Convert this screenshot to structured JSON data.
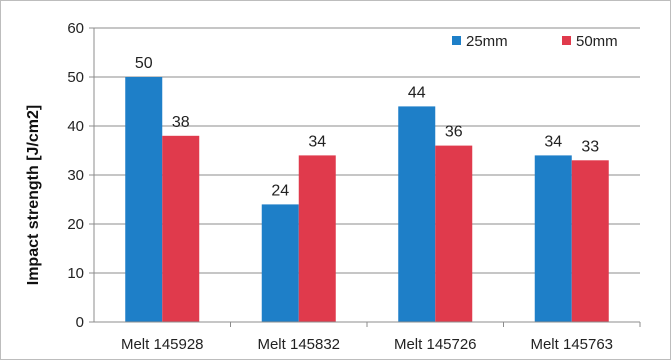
{
  "chart_data": {
    "type": "bar",
    "title": "",
    "xlabel": "",
    "ylabel": "Impact strength [J/cm2]",
    "ylim": [
      0,
      60
    ],
    "yticks": [
      0,
      10,
      20,
      30,
      40,
      50,
      60
    ],
    "grid": true,
    "legend_position": "top-right",
    "categories": [
      "Melt 145928",
      "Melt 145832",
      "Melt 145726",
      "Melt 145763"
    ],
    "series": [
      {
        "name": "25mm",
        "color": "#1e7fc8",
        "values": [
          50,
          24,
          44,
          34
        ]
      },
      {
        "name": "50mm",
        "color": "#e03a4c",
        "values": [
          38,
          34,
          36,
          33
        ]
      }
    ]
  }
}
